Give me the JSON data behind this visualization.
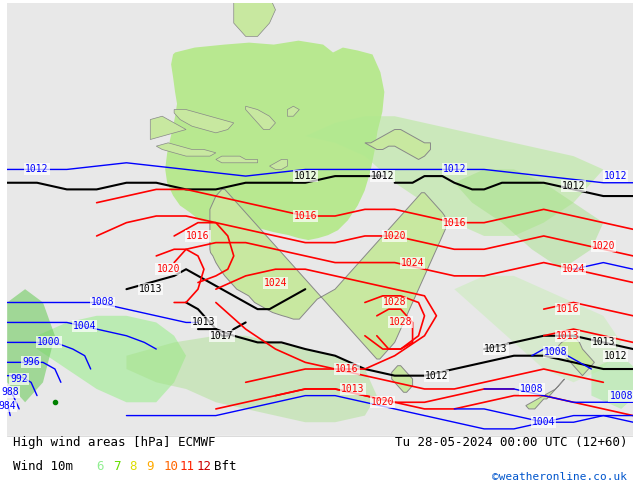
{
  "title_left": "High wind areas [hPa] ECMWF",
  "title_right": "Tu 28-05-2024 00:00 UTC (12+60)",
  "label_wind": "Wind 10m",
  "bft_nums": [
    "6",
    "7",
    "8",
    "9",
    "10",
    "11",
    "12"
  ],
  "bft_colors": [
    "#90ee90",
    "#66dd00",
    "#dddd00",
    "#ffaa00",
    "#ff6600",
    "#ff2200",
    "#cc0000"
  ],
  "copyright": "©weatheronline.co.uk",
  "bg_color": "#e8e8e8",
  "land_color": "#c8e8a0",
  "fig_width": 6.34,
  "fig_height": 4.9,
  "dpi": 100
}
